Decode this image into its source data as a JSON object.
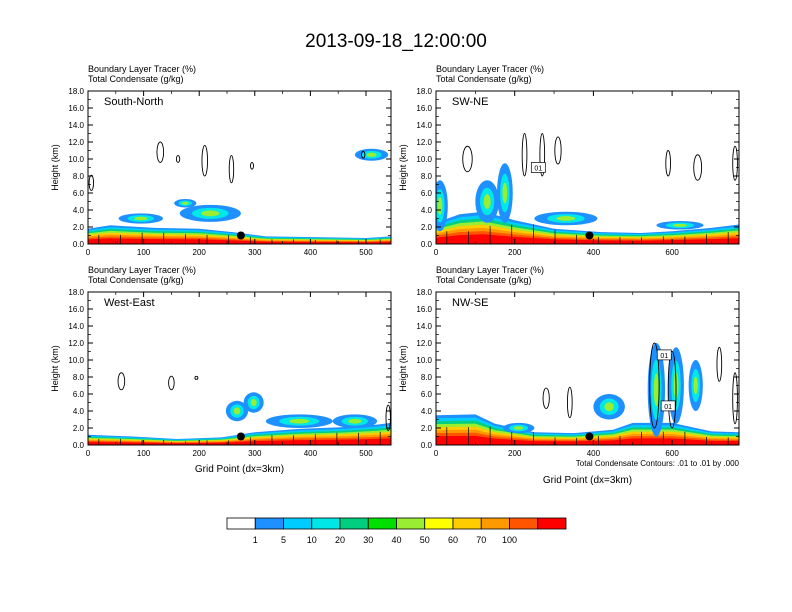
{
  "page": {
    "title": "2013-09-18_12:00:00"
  },
  "panel_header": {
    "line1": "Boundary Layer Tracer   (%)",
    "line2": "Total Condensate   (g/kg)"
  },
  "axis_label_height": "Height (km)",
  "axis_label_x": "Grid Point (dx=3km)",
  "contour_note": "Total Condensate Contours: .01 to .01 by .000",
  "colorbar": {
    "levels": [
      "1",
      "5",
      "10",
      "20",
      "30",
      "40",
      "50",
      "60",
      "70",
      "100"
    ],
    "colors": [
      "#ffffff",
      "#1e90ff",
      "#00ccff",
      "#00e7e7",
      "#00cf7f",
      "#00e000",
      "#99ee33",
      "#ffff00",
      "#ffcc00",
      "#ff9900",
      "#ff5500",
      "#ff0000"
    ]
  },
  "chart_data": [
    {
      "type": "heatmap",
      "id": "south-north",
      "panel_label": "South-North",
      "xlim": [
        0,
        545
      ],
      "ylim": [
        0,
        18
      ],
      "xticks": [
        0,
        100,
        200,
        300,
        400,
        500
      ],
      "yticks": [
        "0.0",
        "2.0",
        "4.0",
        "6.0",
        "8.0",
        "10.0",
        "12.0",
        "14.0",
        "16.0",
        "18.0"
      ],
      "show_xlabel": false,
      "marker": {
        "x": 275,
        "y": 1.0
      },
      "pbl_top": [
        [
          0,
          1.8
        ],
        [
          40,
          2.2
        ],
        [
          120,
          1.9
        ],
        [
          200,
          1.8
        ],
        [
          260,
          1.4
        ],
        [
          320,
          0.9
        ],
        [
          420,
          0.8
        ],
        [
          500,
          0.7
        ],
        [
          545,
          0.9
        ]
      ],
      "cloud_patches": [
        [
          95,
          3.0,
          40,
          0.6
        ],
        [
          220,
          3.6,
          55,
          1.0
        ],
        [
          175,
          4.8,
          20,
          0.5
        ],
        [
          510,
          10.5,
          30,
          0.7
        ]
      ],
      "contours": [
        [
          130,
          10.8,
          6,
          1.2
        ],
        [
          210,
          9.8,
          5,
          1.8
        ],
        [
          258,
          8.8,
          4,
          1.6
        ],
        [
          162,
          10.0,
          3,
          0.4
        ],
        [
          295,
          9.2,
          2,
          0.4
        ],
        [
          495,
          10.5,
          3,
          0.4
        ],
        [
          6,
          7.2,
          4,
          0.9
        ]
      ]
    },
    {
      "type": "heatmap",
      "id": "sw-ne",
      "panel_label": "SW-NE",
      "xlim": [
        0,
        770
      ],
      "ylim": [
        0,
        18
      ],
      "xticks": [
        0,
        200,
        400,
        600
      ],
      "yticks": [
        "0.0",
        "2.0",
        "4.0",
        "6.0",
        "8.0",
        "10.0",
        "12.0",
        "14.0",
        "16.0",
        "18.0"
      ],
      "show_xlabel": false,
      "contour_box": {
        "text": "01",
        "x": 260,
        "y": 9.0
      },
      "marker": {
        "x": 390,
        "y": 1.0
      },
      "pbl_top": [
        [
          0,
          2.5
        ],
        [
          60,
          3.5
        ],
        [
          120,
          3.8
        ],
        [
          200,
          2.8
        ],
        [
          300,
          1.8
        ],
        [
          420,
          1.4
        ],
        [
          520,
          1.3
        ],
        [
          600,
          1.5
        ],
        [
          700,
          1.9
        ],
        [
          770,
          2.3
        ]
      ],
      "cloud_patches": [
        [
          130,
          5.0,
          30,
          2.5
        ],
        [
          175,
          6.0,
          20,
          3.5
        ],
        [
          10,
          4.5,
          20,
          3.0
        ],
        [
          330,
          3.0,
          80,
          0.8
        ],
        [
          620,
          2.2,
          60,
          0.5
        ]
      ],
      "contours": [
        [
          80,
          10.0,
          12,
          1.5
        ],
        [
          225,
          10.5,
          6,
          2.5
        ],
        [
          270,
          10.5,
          6,
          2.5
        ],
        [
          310,
          11.0,
          8,
          1.6
        ],
        [
          590,
          9.5,
          6,
          1.5
        ],
        [
          665,
          9.0,
          10,
          1.5
        ],
        [
          760,
          9.5,
          6,
          2.0
        ]
      ]
    },
    {
      "type": "heatmap",
      "id": "west-east",
      "panel_label": "West-East",
      "xlim": [
        0,
        545
      ],
      "ylim": [
        0,
        18
      ],
      "xticks": [
        0,
        100,
        200,
        300,
        400,
        500
      ],
      "yticks": [
        "0.0",
        "2.0",
        "4.0",
        "6.0",
        "8.0",
        "10.0",
        "12.0",
        "14.0",
        "16.0",
        "18.0"
      ],
      "show_xlabel": true,
      "marker": {
        "x": 275,
        "y": 1.0
      },
      "pbl_top": [
        [
          0,
          1.2
        ],
        [
          80,
          1.0
        ],
        [
          160,
          0.7
        ],
        [
          240,
          0.9
        ],
        [
          300,
          1.5
        ],
        [
          380,
          1.9
        ],
        [
          460,
          2.1
        ],
        [
          520,
          2.4
        ],
        [
          545,
          2.6
        ]
      ],
      "cloud_patches": [
        [
          268,
          4.0,
          20,
          1.2
        ],
        [
          298,
          5.0,
          18,
          1.2
        ],
        [
          380,
          2.8,
          60,
          0.8
        ],
        [
          480,
          2.8,
          40,
          0.8
        ]
      ],
      "contours": [
        [
          60,
          7.5,
          6,
          1.0
        ],
        [
          150,
          7.3,
          5,
          0.8
        ],
        [
          195,
          7.9,
          1,
          0.1
        ],
        [
          540,
          3.2,
          4,
          1.5
        ]
      ]
    },
    {
      "type": "heatmap",
      "id": "nw-se",
      "panel_label": "NW-SE",
      "xlim": [
        0,
        770
      ],
      "ylim": [
        0,
        18
      ],
      "xticks": [
        0,
        200,
        400,
        600
      ],
      "yticks": [
        "0.0",
        "2.0",
        "4.0",
        "6.0",
        "8.0",
        "10.0",
        "12.0",
        "14.0",
        "16.0",
        "18.0"
      ],
      "show_xlabel": true,
      "contour_box": [
        {
          "text": "01",
          "x": 580,
          "y": 10.6
        },
        {
          "text": "01",
          "x": 590,
          "y": 4.6
        }
      ],
      "marker": {
        "x": 390,
        "y": 1.0
      },
      "pbl_top": [
        [
          0,
          3.5
        ],
        [
          100,
          3.6
        ],
        [
          150,
          2.5
        ],
        [
          250,
          1.5
        ],
        [
          350,
          1.4
        ],
        [
          450,
          1.8
        ],
        [
          500,
          2.6
        ],
        [
          600,
          2.6
        ],
        [
          700,
          1.6
        ],
        [
          770,
          1.5
        ]
      ],
      "cloud_patches": [
        [
          440,
          4.5,
          40,
          1.5
        ],
        [
          560,
          6.5,
          22,
          5.5
        ],
        [
          610,
          7.0,
          20,
          4.5
        ],
        [
          660,
          7.0,
          18,
          3.0
        ],
        [
          210,
          2.0,
          40,
          0.6
        ]
      ],
      "contours": [
        [
          280,
          5.5,
          8,
          1.2
        ],
        [
          340,
          5.0,
          6,
          1.8
        ],
        [
          555,
          7.0,
          12,
          5.0
        ],
        [
          600,
          6.5,
          10,
          4.5
        ],
        [
          760,
          5.5,
          6,
          3.0
        ],
        [
          720,
          9.5,
          6,
          2.0
        ]
      ]
    }
  ]
}
